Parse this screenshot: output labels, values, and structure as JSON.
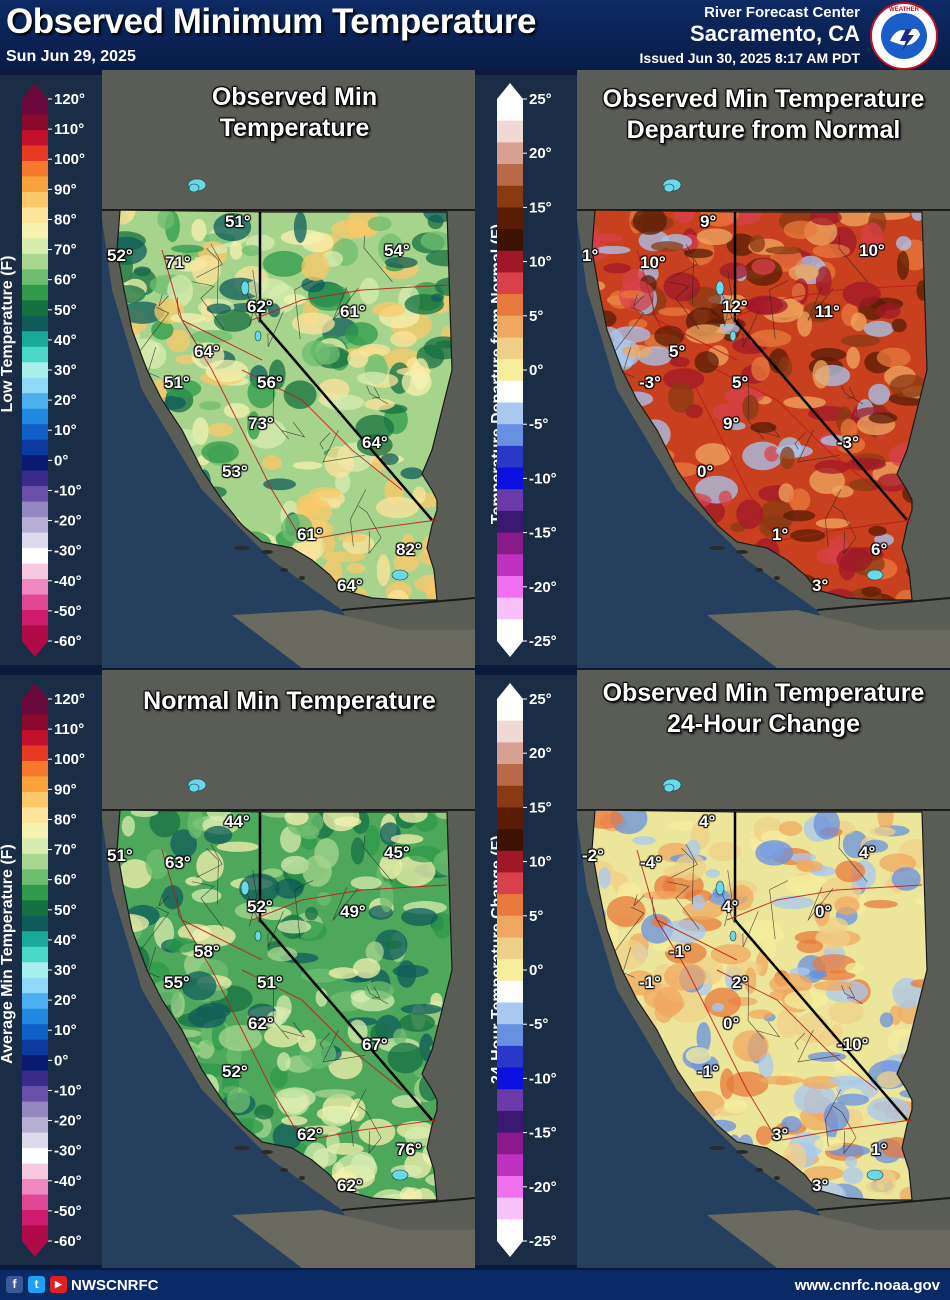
{
  "header": {
    "title": "Observed Minimum Temperature",
    "date": "Sun Jun 29, 2025",
    "office_line1": "River Forecast Center",
    "office_line2": "Sacramento, CA",
    "issued": "Issued Jun 30, 2025 8:17 AM PDT",
    "logo_text": "NATIONAL WEATHER SERVICE"
  },
  "legends": {
    "temp_scale_top": {
      "title": "Low Temperature (F)",
      "ticks": [
        "120°",
        "110°",
        "100°",
        "90°",
        "80°",
        "70°",
        "60°",
        "50°",
        "40°",
        "30°",
        "20°",
        "10°",
        "0°",
        "-10°",
        "-20°",
        "-30°",
        "-40°",
        "-50°",
        "-60°"
      ]
    },
    "temp_scale_bottom": {
      "title": "Average Min Temperature (F)",
      "ticks": [
        "120°",
        "110°",
        "100°",
        "90°",
        "80°",
        "70°",
        "60°",
        "50°",
        "40°",
        "30°",
        "20°",
        "10°",
        "0°",
        "-10°",
        "-20°",
        "-30°",
        "-40°",
        "-50°",
        "-60°"
      ]
    },
    "diff_scale_top": {
      "title": "Temperature Departure from Normal (F)",
      "ticks": [
        "25°",
        "20°",
        "15°",
        "10°",
        "5°",
        "0°",
        "-5°",
        "-10°",
        "-15°",
        "-20°",
        "-25°"
      ]
    },
    "diff_scale_bottom": {
      "title": "24-Hour Temperature Change (F)",
      "ticks": [
        "25°",
        "20°",
        "15°",
        "10°",
        "5°",
        "0°",
        "-5°",
        "-10°",
        "-15°",
        "-20°",
        "-25°"
      ]
    },
    "temp_colors": [
      "#6a0a3c",
      "#8a0a2e",
      "#c0102a",
      "#e83a22",
      "#f5782c",
      "#f7a23a",
      "#fbc86a",
      "#fde49c",
      "#f5f2b0",
      "#d8ecb0",
      "#a8d690",
      "#6fbe70",
      "#2e9a4a",
      "#157040",
      "#0d5c5a",
      "#1aa89a",
      "#4cd8c8",
      "#a8f0ec",
      "#8ed8f8",
      "#4cb0f0",
      "#2088e0",
      "#1060c8",
      "#0c3aa0",
      "#0a1a70",
      "#3a2a8a",
      "#6a50a8",
      "#9488c0",
      "#b8b0d4",
      "#dcdaea",
      "#ffffff",
      "#f8c8e0",
      "#f088c0",
      "#e04896",
      "#d01c6c",
      "#b00a48"
    ],
    "diff_colors": [
      "#ffffff",
      "#f0d8d4",
      "#d8a090",
      "#b86a48",
      "#8a3a12",
      "#5a1c04",
      "#3e1202",
      "#a01828",
      "#d8404a",
      "#e87a3c",
      "#f0a860",
      "#f0d088",
      "#f6ee9c",
      "#ffffff",
      "#a8c8f0",
      "#6890e0",
      "#2838c8",
      "#0a10e0",
      "#6a3aa8",
      "#3a1a70",
      "#8a1a8a",
      "#c030c0",
      "#f070f0",
      "#f8c0f8",
      "#ffffff"
    ]
  },
  "maps": {
    "observed": {
      "title_line1": "Observed Min",
      "title_line2": "Temperature",
      "labels": [
        "52°",
        "51°",
        "71°",
        "54°",
        "62°",
        "61°",
        "64°",
        "51°",
        "56°",
        "73°",
        "64°",
        "53°",
        "61°",
        "82°",
        "64°"
      ]
    },
    "departure": {
      "title_line1": "Observed Min Temperature",
      "title_line2": "Departure from Normal",
      "labels": [
        "1°",
        "9°",
        "10°",
        "10°",
        "12°",
        "11°",
        "5°",
        "-3°",
        "5°",
        "9°",
        "-3°",
        "0°",
        "1°",
        "6°",
        "3°"
      ]
    },
    "normal": {
      "title_line1": "Normal Min Temperature",
      "title_line2": "",
      "labels": [
        "51°",
        "44°",
        "63°",
        "45°",
        "52°",
        "49°",
        "58°",
        "55°",
        "51°",
        "62°",
        "67°",
        "52°",
        "62°",
        "76°",
        "62°"
      ]
    },
    "change": {
      "title_line1": "Observed Min Temperature",
      "title_line2": "24-Hour Change",
      "labels": [
        "-2°",
        "4°",
        "-4°",
        "4°",
        "4°",
        "0°",
        "-1°",
        "-1°",
        "2°",
        "0°",
        "-10°",
        "-1°",
        "3°",
        "1°",
        "3°"
      ]
    }
  },
  "footer": {
    "social": [
      "f",
      "t",
      "▶"
    ],
    "handle": "NWSCNRFC",
    "website": "www.cnrfc.noaa.gov"
  }
}
